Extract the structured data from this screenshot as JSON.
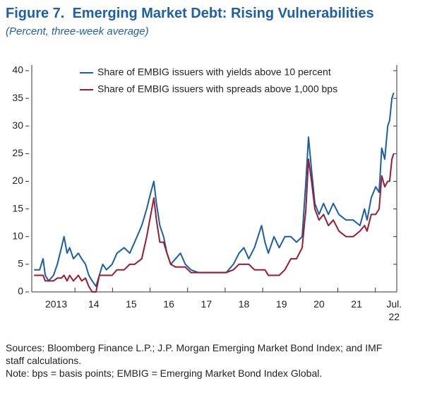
{
  "chart_data": {
    "type": "line",
    "title": "Figure 7.  Emerging Market Debt: Rising Vulnerabilities",
    "subtitle": "(Percent, three-week average)",
    "x": [
      2012.91,
      2013.06,
      2013.15,
      2013.21,
      2013.3,
      2013.43,
      2013.53,
      2013.64,
      2013.71,
      2013.79,
      2013.86,
      2013.96,
      2014.09,
      2014.18,
      2014.28,
      2014.37,
      2014.46,
      2014.56,
      2014.65,
      2014.74,
      2014.84,
      2014.99,
      2015.12,
      2015.31,
      2015.46,
      2015.59,
      2015.78,
      2015.91,
      2016.02,
      2016.1,
      2016.17,
      2016.26,
      2016.36,
      2016.45,
      2016.55,
      2016.68,
      2016.81,
      2016.94,
      2017.09,
      2017.28,
      2017.65,
      2018.03,
      2018.22,
      2018.37,
      2018.5,
      2018.63,
      2018.78,
      2018.97,
      2019.06,
      2019.15,
      2019.3,
      2019.44,
      2019.59,
      2019.75,
      2019.9,
      2020.05,
      2020.15,
      2020.22,
      2020.3,
      2020.39,
      2020.5,
      2020.62,
      2020.75,
      2020.88,
      2021.03,
      2021.22,
      2021.41,
      2021.59,
      2021.71,
      2021.78,
      2021.89,
      2022.01,
      2022.1,
      2022.17,
      2022.25,
      2022.33,
      2022.38,
      2022.44,
      2022.49
    ],
    "series": [
      {
        "name": "Share of EMBIG issuers with yields above 10 percent",
        "color": "#1a5ea8",
        "values": [
          4,
          4,
          6,
          3,
          2,
          3,
          5,
          8,
          10,
          7,
          8,
          6,
          7,
          6,
          5,
          3,
          2,
          1,
          3,
          5,
          4,
          5,
          7,
          8,
          7,
          9,
          12,
          15,
          18,
          20,
          16,
          12,
          10,
          7,
          5,
          6,
          7,
          5,
          4,
          3.5,
          3.5,
          3.5,
          5,
          7,
          8,
          6,
          8,
          12,
          9,
          7,
          10,
          8,
          10,
          10,
          9,
          10,
          20,
          28,
          22,
          16,
          14,
          16,
          14,
          16,
          14,
          13,
          13,
          12,
          15,
          13,
          17,
          19,
          18,
          26,
          24,
          30,
          31,
          35,
          36
        ]
      },
      {
        "name": "Share of EMBIG issuers with spreads above 1,000 bps",
        "color": "#9b1b30",
        "values": [
          3,
          3,
          3,
          2,
          2,
          2,
          2.5,
          2.5,
          3,
          2,
          3,
          2,
          3,
          2,
          2.5,
          1,
          0,
          0,
          3,
          3,
          3,
          3,
          4,
          4,
          5,
          5,
          6,
          10,
          14,
          17,
          13,
          9,
          9,
          7,
          5,
          4.5,
          4.5,
          4.5,
          3.5,
          3.5,
          3.5,
          3.5,
          4,
          5,
          5,
          5,
          4,
          4,
          4,
          3,
          3,
          3,
          4,
          6,
          6,
          8,
          15,
          24,
          20,
          15,
          13,
          14,
          12,
          13,
          11,
          10,
          10,
          11,
          12,
          11,
          14,
          14,
          15,
          21,
          19,
          20,
          20,
          24,
          25
        ]
      }
    ],
    "xlim": [
      2012.85,
      2022.57
    ],
    "xticks": [
      {
        "value": 2013.5,
        "label": "2013"
      },
      {
        "value": 2014.5,
        "label": "14"
      },
      {
        "value": 2015.5,
        "label": "15"
      },
      {
        "value": 2016.5,
        "label": "16"
      },
      {
        "value": 2017.5,
        "label": "17"
      },
      {
        "value": 2018.5,
        "label": "18"
      },
      {
        "value": 2019.5,
        "label": "19"
      },
      {
        "value": 2020.5,
        "label": "20"
      },
      {
        "value": 2021.5,
        "label": "21"
      },
      {
        "value": 2022.5,
        "label": "Jul.\n22"
      }
    ],
    "ylim": [
      0,
      40
    ],
    "yticks": [
      0,
      5,
      10,
      15,
      20,
      25,
      30,
      35,
      40
    ],
    "grid": false,
    "legend": "top-left",
    "sources": "Sources: Bloomberg Finance L.P.; J.P. Morgan Emerging Market Bond Index; and IMF staff calculations.",
    "note": "Note: bps = basis points; EMBIG = Emerging Market Bond Index Global."
  }
}
